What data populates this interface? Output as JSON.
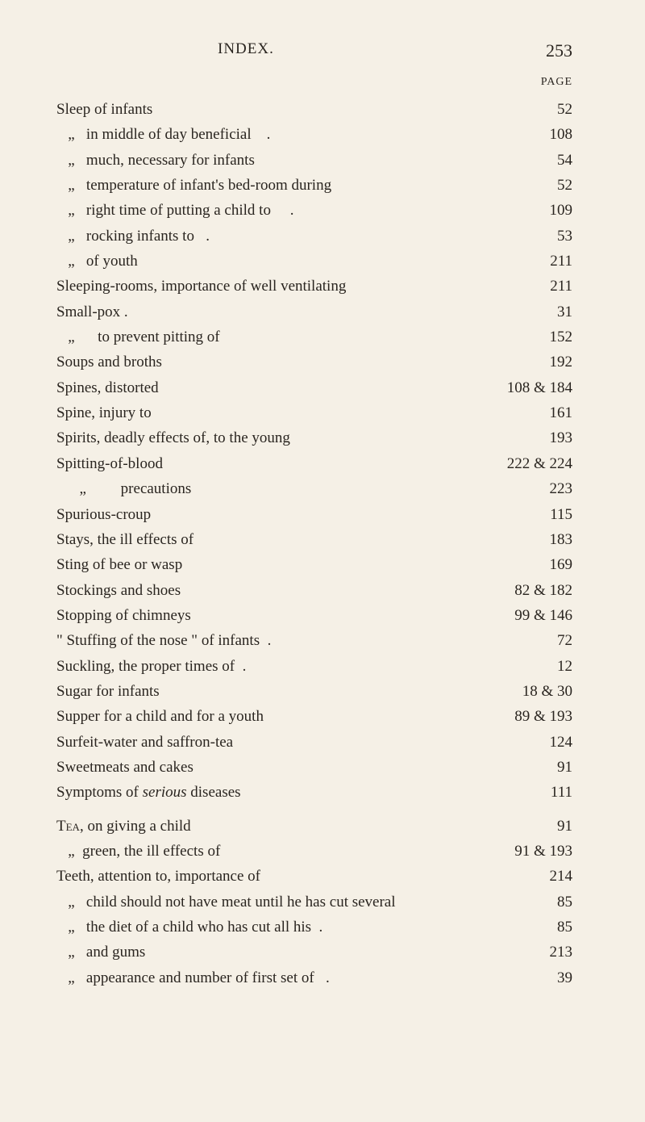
{
  "header": {
    "index_label": "INDEX.",
    "page_number": "253",
    "page_label": "PAGE"
  },
  "entries": [
    {
      "text": "Sleep of infants",
      "page": "52"
    },
    {
      "text": "   „   in middle of day beneficial    .",
      "page": "108"
    },
    {
      "text": "   „   much, necessary for infants",
      "page": "54"
    },
    {
      "text": "   „   temperature of infant's bed-room during",
      "page": "52"
    },
    {
      "text": "   „   right time of putting a child to     .",
      "page": "109"
    },
    {
      "text": "   „   rocking infants to   .",
      "page": "53"
    },
    {
      "text": "   „   of youth",
      "page": "211"
    },
    {
      "text": "Sleeping-rooms, importance of well ventilating",
      "page": "211"
    },
    {
      "text": "Small-pox .",
      "page": "31"
    },
    {
      "text": "   „      to prevent pitting of",
      "page": "152"
    },
    {
      "text": "Soups and broths",
      "page": "192"
    },
    {
      "text": "Spines, distorted",
      "page": "108 & 184"
    },
    {
      "text": "Spine, injury to",
      "page": "161"
    },
    {
      "text": "Spirits, deadly effects of, to the young",
      "page": "193"
    },
    {
      "text": "Spitting-of-blood",
      "page": "222 & 224"
    },
    {
      "text": "      „         precautions",
      "page": "223"
    },
    {
      "text": "Spurious-croup",
      "page": "115"
    },
    {
      "text": "Stays, the ill effects of",
      "page": "183"
    },
    {
      "text": "Sting of bee or wasp",
      "page": "169"
    },
    {
      "text": "Stockings and shoes",
      "page": "82 & 182"
    },
    {
      "text": "Stopping of chimneys",
      "page": "99 & 146"
    },
    {
      "text": "\" Stuffing of the nose \" of infants  .",
      "page": "72"
    },
    {
      "text": "Suckling, the proper times of  .",
      "page": "12"
    },
    {
      "text": "Sugar for infants",
      "page": "18 & 30"
    },
    {
      "text": "Supper for a child and for a youth",
      "page": "89 & 193"
    },
    {
      "text": "Surfeit-water and saffron-tea",
      "page": "124"
    },
    {
      "text": "Sweetmeats and cakes",
      "page": "91"
    },
    {
      "text": "Symptoms of serious diseases",
      "page": "111",
      "italic_word": "serious"
    },
    {
      "text": "",
      "page": "",
      "spacer": true
    },
    {
      "text": "TEA, on giving a child",
      "page": "91",
      "smallcaps_word": "TEA"
    },
    {
      "text": "   „  green, the ill effects of",
      "page": "91 & 193"
    },
    {
      "text": "Teeth, attention to, importance of",
      "page": "214"
    },
    {
      "text": "   „   child should not have meat until he has cut several",
      "page": "85"
    },
    {
      "text": "   „   the diet of a child who has cut all his  .",
      "page": "85"
    },
    {
      "text": "   „   and gums",
      "page": "213"
    },
    {
      "text": "   „   appearance and number of first set of   .",
      "page": "39"
    }
  ]
}
